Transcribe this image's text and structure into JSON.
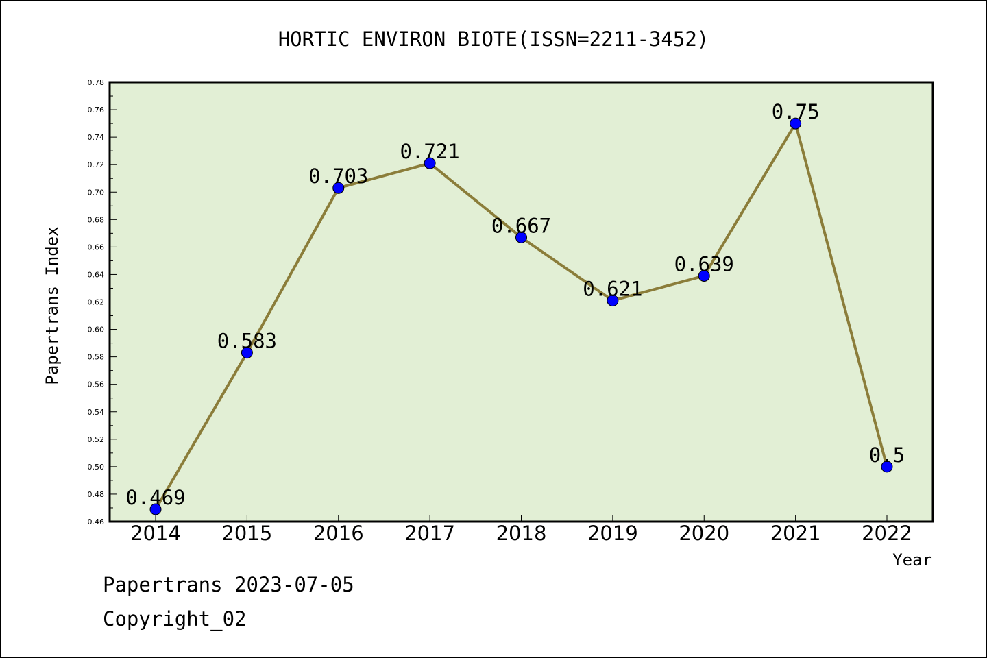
{
  "chart_data": {
    "type": "line",
    "title": "HORTIC ENVIRON BIOTE(ISSN=2211-3452)",
    "xlabel": "Year",
    "ylabel": "Papertrans Index",
    "categories": [
      "2014",
      "2015",
      "2016",
      "2017",
      "2018",
      "2019",
      "2020",
      "2021",
      "2022"
    ],
    "values": [
      0.469,
      0.583,
      0.703,
      0.721,
      0.667,
      0.621,
      0.639,
      0.75,
      0.5
    ],
    "data_labels": [
      "0.469",
      "0.583",
      "0.703",
      "0.721",
      "0.667",
      "0.621",
      "0.639",
      "0.75",
      "0.5"
    ],
    "ylim": [
      0.46,
      0.78
    ],
    "yticks": [
      "0.46",
      "0.48",
      "0.50",
      "0.52",
      "0.54",
      "0.56",
      "0.58",
      "0.60",
      "0.62",
      "0.64",
      "0.66",
      "0.68",
      "0.70",
      "0.72",
      "0.74",
      "0.76",
      "0.78"
    ],
    "grid": false,
    "colors": {
      "plot_background": "#e2efd5",
      "line": "#8b7d3a",
      "marker": "#0000ff"
    }
  },
  "footer": {
    "date_line": "Papertrans 2023-07-05",
    "copyright": "Copyright_02"
  }
}
